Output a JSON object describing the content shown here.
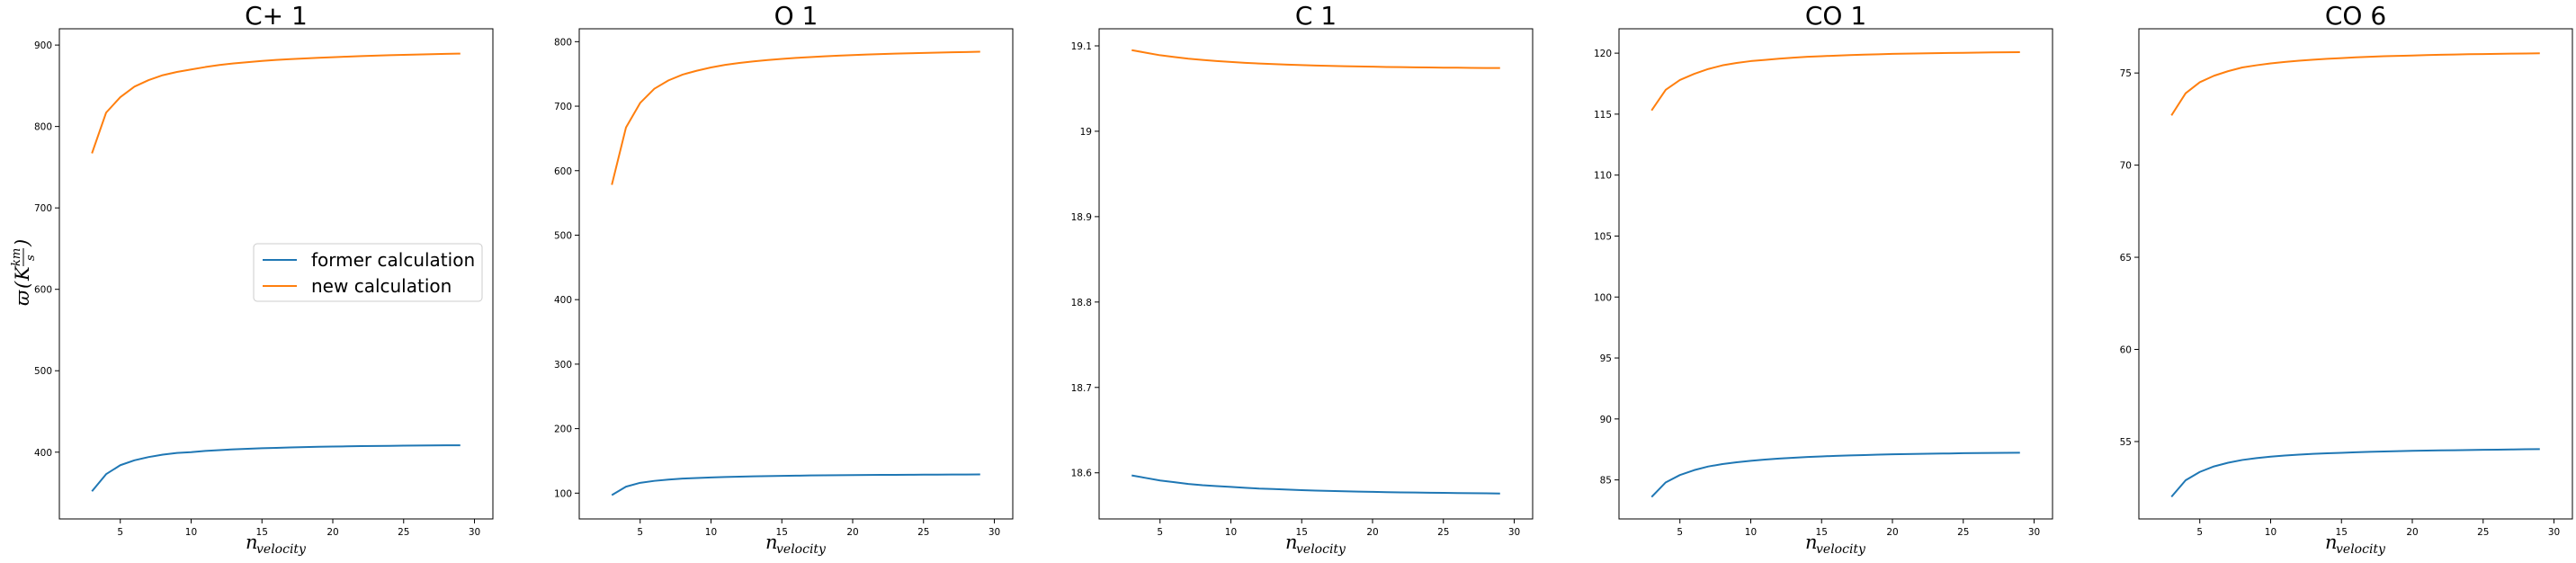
{
  "figure": {
    "ylabel_symbol": "ϖ",
    "ylabel_unit_base": "K",
    "ylabel_unit_num": "km",
    "ylabel_unit_den": "s",
    "xlabel_main": "n",
    "xlabel_sub": "velocity",
    "legend": {
      "placement": "center-right (first panel)",
      "entries": [
        "former calculation",
        "new calculation"
      ]
    },
    "colors": {
      "former": "#1f77b4",
      "new": "#ff7f0e"
    }
  },
  "chart_data": [
    {
      "type": "line",
      "title": "C+ 1",
      "xlabel": "n_velocity",
      "ylabel": "ϖ (K km/s)",
      "x": [
        3,
        4,
        5,
        6,
        7,
        8,
        9,
        10,
        11,
        12,
        13,
        14,
        15,
        16,
        17,
        18,
        19,
        20,
        21,
        22,
        23,
        24,
        25,
        26,
        27,
        28,
        29
      ],
      "xlim": [
        0.7,
        31.3
      ],
      "ylim": [
        318,
        920
      ],
      "xticks": [
        5,
        10,
        15,
        20,
        25,
        30
      ],
      "yticks": [
        400,
        500,
        600,
        700,
        800,
        900
      ],
      "grid": false,
      "series": [
        {
          "name": "former calculation",
          "color": "#1f77b4",
          "values": [
            352,
            373,
            384,
            390,
            394,
            397,
            399,
            400,
            401.5,
            402.5,
            403.5,
            404.2,
            404.8,
            405.3,
            405.8,
            406.2,
            406.6,
            406.9,
            407.2,
            407.4,
            407.6,
            407.8,
            408,
            408.2,
            408.3,
            408.4,
            408.5
          ]
        },
        {
          "name": "new calculation",
          "color": "#ff7f0e",
          "values": [
            767,
            817,
            836,
            849,
            857,
            863,
            867,
            870,
            873,
            875.5,
            877.5,
            879,
            880.5,
            881.7,
            882.7,
            883.6,
            884.4,
            885.1,
            885.8,
            886.4,
            887,
            887.5,
            888,
            888.4,
            888.8,
            889.2,
            889.5
          ]
        }
      ]
    },
    {
      "type": "line",
      "title": "O 1",
      "xlabel": "n_velocity",
      "ylabel": "",
      "x": [
        3,
        4,
        5,
        6,
        7,
        8,
        9,
        10,
        11,
        12,
        13,
        14,
        15,
        16,
        17,
        18,
        19,
        20,
        21,
        22,
        23,
        24,
        25,
        26,
        27,
        28,
        29
      ],
      "xlim": [
        0.7,
        31.3
      ],
      "ylim": [
        60,
        820
      ],
      "xticks": [
        5,
        10,
        15,
        20,
        25,
        30
      ],
      "yticks": [
        100,
        200,
        300,
        400,
        500,
        600,
        700,
        800
      ],
      "grid": false,
      "series": [
        {
          "name": "former calculation",
          "color": "#1f77b4",
          "values": [
            97,
            110,
            116,
            119,
            121,
            122.5,
            123.5,
            124.3,
            125,
            125.5,
            126,
            126.4,
            126.8,
            127.1,
            127.4,
            127.6,
            127.8,
            128,
            128.2,
            128.3,
            128.4,
            128.5,
            128.6,
            128.7,
            128.8,
            128.9,
            129
          ]
        },
        {
          "name": "new calculation",
          "color": "#ff7f0e",
          "values": [
            578,
            667,
            705,
            727,
            740,
            749,
            755,
            760,
            764,
            767,
            769.5,
            771.5,
            773.3,
            774.8,
            776.1,
            777.3,
            778.3,
            779.2,
            780,
            780.7,
            781.4,
            782,
            782.6,
            783.1,
            783.6,
            784,
            784.4
          ]
        }
      ]
    },
    {
      "type": "line",
      "title": "C 1",
      "xlabel": "n_velocity",
      "ylabel": "",
      "x": [
        3,
        4,
        5,
        6,
        7,
        8,
        9,
        10,
        11,
        12,
        13,
        14,
        15,
        16,
        17,
        18,
        19,
        20,
        21,
        22,
        23,
        24,
        25,
        26,
        27,
        28,
        29
      ],
      "xlim": [
        0.7,
        31.3
      ],
      "ylim": [
        18.546,
        19.12
      ],
      "xticks": [
        5,
        10,
        15,
        20,
        25,
        30
      ],
      "yticks": [
        18.6,
        18.7,
        18.8,
        18.9,
        19.0,
        19.1
      ],
      "grid": false,
      "series": [
        {
          "name": "former calculation",
          "color": "#1f77b4",
          "values": [
            18.597,
            18.594,
            18.591,
            18.589,
            18.587,
            18.5855,
            18.5845,
            18.5835,
            18.5825,
            18.5815,
            18.581,
            18.5803,
            18.5797,
            18.5792,
            18.5788,
            18.5784,
            18.578,
            18.5777,
            18.5774,
            18.5771,
            18.5769,
            18.5767,
            18.5765,
            18.5763,
            18.5761,
            18.576,
            18.5758
          ]
        },
        {
          "name": "new calculation",
          "color": "#ff7f0e",
          "values": [
            19.095,
            19.092,
            19.089,
            19.087,
            19.085,
            19.0835,
            19.0822,
            19.0811,
            19.0801,
            19.0793,
            19.0786,
            19.078,
            19.0775,
            19.077,
            19.0766,
            19.0762,
            19.0759,
            19.0756,
            19.0753,
            19.0751,
            19.0749,
            19.0747,
            19.0745,
            19.0744,
            19.0742,
            19.0741,
            19.074
          ]
        }
      ]
    },
    {
      "type": "line",
      "title": "CO 1",
      "xlabel": "n_velocity",
      "ylabel": "",
      "x": [
        3,
        4,
        5,
        6,
        7,
        8,
        9,
        10,
        11,
        12,
        13,
        14,
        15,
        16,
        17,
        18,
        19,
        20,
        21,
        22,
        23,
        24,
        25,
        26,
        27,
        28,
        29
      ],
      "xlim": [
        0.7,
        31.3
      ],
      "ylim": [
        81.8,
        122
      ],
      "xticks": [
        5,
        10,
        15,
        20,
        25,
        30
      ],
      "yticks": [
        85,
        90,
        95,
        100,
        105,
        110,
        115,
        120
      ],
      "grid": false,
      "series": [
        {
          "name": "former calculation",
          "color": "#1f77b4",
          "values": [
            83.6,
            84.8,
            85.4,
            85.8,
            86.1,
            86.3,
            86.45,
            86.57,
            86.67,
            86.75,
            86.82,
            86.88,
            86.93,
            86.97,
            87.01,
            87.04,
            87.07,
            87.1,
            87.12,
            87.14,
            87.16,
            87.17,
            87.19,
            87.2,
            87.21,
            87.22,
            87.23
          ]
        },
        {
          "name": "new calculation",
          "color": "#ff7f0e",
          "values": [
            115.3,
            117,
            117.8,
            118.3,
            118.7,
            119,
            119.2,
            119.35,
            119.45,
            119.55,
            119.63,
            119.7,
            119.75,
            119.8,
            119.84,
            119.88,
            119.91,
            119.94,
            119.96,
            119.98,
            120,
            120.02,
            120.03,
            120.05,
            120.06,
            120.07,
            120.08
          ]
        }
      ]
    },
    {
      "type": "line",
      "title": "CO 6",
      "xlabel": "n_velocity",
      "ylabel": "",
      "x": [
        3,
        4,
        5,
        6,
        7,
        8,
        9,
        10,
        11,
        12,
        13,
        14,
        15,
        16,
        17,
        18,
        19,
        20,
        21,
        22,
        23,
        24,
        25,
        26,
        27,
        28,
        29
      ],
      "xlim": [
        0.7,
        31.3
      ],
      "ylim": [
        50.8,
        77.4
      ],
      "xticks": [
        5,
        10,
        15,
        20,
        25,
        30
      ],
      "yticks": [
        55,
        60,
        65,
        70,
        75
      ],
      "grid": false,
      "series": [
        {
          "name": "former calculation",
          "color": "#1f77b4",
          "values": [
            52,
            52.9,
            53.35,
            53.65,
            53.85,
            54,
            54.1,
            54.18,
            54.24,
            54.29,
            54.33,
            54.36,
            54.39,
            54.42,
            54.44,
            54.46,
            54.48,
            54.5,
            54.51,
            54.52,
            54.53,
            54.54,
            54.55,
            54.56,
            54.57,
            54.58,
            54.59
          ]
        },
        {
          "name": "new calculation",
          "color": "#ff7f0e",
          "values": [
            72.7,
            73.9,
            74.5,
            74.85,
            75.1,
            75.3,
            75.42,
            75.52,
            75.6,
            75.67,
            75.72,
            75.77,
            75.81,
            75.85,
            75.88,
            75.91,
            75.93,
            75.95,
            75.97,
            75.99,
            76,
            76.02,
            76.03,
            76.04,
            76.05,
            76.06,
            76.07
          ]
        }
      ]
    }
  ]
}
